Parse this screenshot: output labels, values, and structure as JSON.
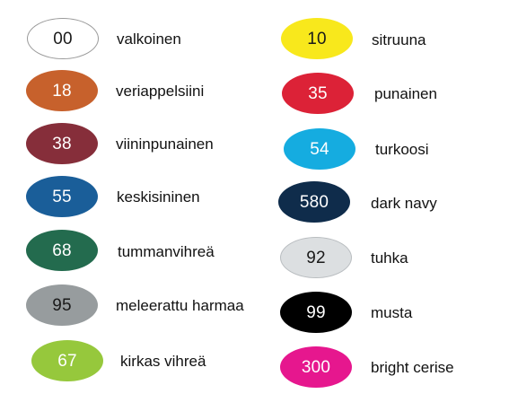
{
  "colors": [
    {
      "code": "00",
      "name": "valkoinen",
      "fill": "#ffffff",
      "border": "#9a9a9a",
      "text": "#1a1a1a"
    },
    {
      "code": "18",
      "name": "veriappelsiini",
      "fill": "#c7612c",
      "border": "#c7612c",
      "text": "#ffffff"
    },
    {
      "code": "38",
      "name": "viininpunainen",
      "fill": "#862e3a",
      "border": "#862e3a",
      "text": "#ffffff"
    },
    {
      "code": "55",
      "name": "keskisininen",
      "fill": "#1a5e99",
      "border": "#1a5e99",
      "text": "#ffffff"
    },
    {
      "code": "68",
      "name": "tummanvihreä",
      "fill": "#236b4e",
      "border": "#236b4e",
      "text": "#ffffff"
    },
    {
      "code": "95",
      "name": "meleerattu harmaa",
      "fill": "#979c9e",
      "border": "#979c9e",
      "text": "#1a1a1a"
    },
    {
      "code": "67",
      "name": "kirkas vihreä",
      "fill": "#96c83c",
      "border": "#96c83c",
      "text": "#ffffff"
    },
    {
      "code": "10",
      "name": "sitruuna",
      "fill": "#f8e81c",
      "border": "#f8e81c",
      "text": "#1a1a1a"
    },
    {
      "code": "35",
      "name": "punainen",
      "fill": "#dc2237",
      "border": "#dc2237",
      "text": "#ffffff"
    },
    {
      "code": "54",
      "name": "turkoosi",
      "fill": "#15ace0",
      "border": "#15ace0",
      "text": "#ffffff"
    },
    {
      "code": "580",
      "name": "dark navy",
      "fill": "#0f2c4b",
      "border": "#0f2c4b",
      "text": "#ffffff"
    },
    {
      "code": "92",
      "name": "tuhka",
      "fill": "#dcdfe1",
      "border": "#b9bdc0",
      "text": "#1a1a1a"
    },
    {
      "code": "99",
      "name": "musta",
      "fill": "#000000",
      "border": "#000000",
      "text": "#ffffff"
    },
    {
      "code": "300",
      "name": "bright cerise",
      "fill": "#e6178e",
      "border": "#e6178e",
      "text": "#ffffff"
    }
  ]
}
